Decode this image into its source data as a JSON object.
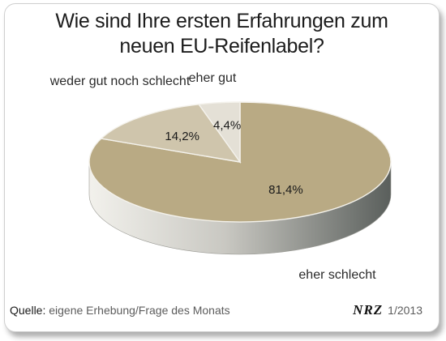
{
  "chart_data": {
    "type": "pie",
    "title_lines": [
      "Wie sind Ihre ersten Erfahrungen zum",
      "neuen EU-Reifenlabel?"
    ],
    "slices": [
      {
        "label": "eher schlecht",
        "value": 81.4,
        "value_label": "81,4%",
        "color": "#b9aa84"
      },
      {
        "label": "weder gut noch schlecht",
        "value": 14.2,
        "value_label": "14,2%",
        "color": "#cfc5ac"
      },
      {
        "label": "eher gut",
        "value": 4.4,
        "value_label": "4,4%",
        "color": "#e4e0d6"
      }
    ],
    "start_angle_deg": -90,
    "direction": "clockwise",
    "style": "3d-tilted"
  },
  "footer": {
    "source_label": "Quelle:",
    "source_text": "eigene Erhebung/Frage des Monats",
    "brand": "NRZ",
    "date": "1/2013"
  }
}
